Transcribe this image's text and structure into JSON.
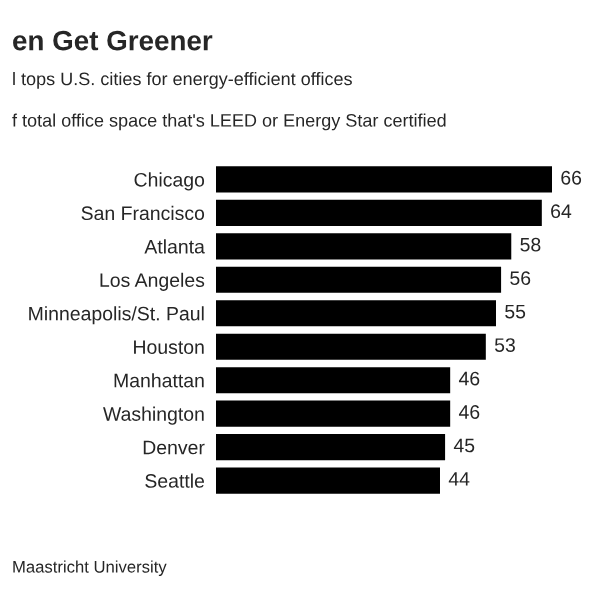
{
  "chart_data": {
    "type": "bar",
    "orientation": "horizontal",
    "title": "en Get Greener",
    "subtitle": "l tops U.S. cities for energy-efficient offices\n\nf total office space that's LEED or Energy Star certified",
    "categories": [
      "Chicago",
      "San Francisco",
      "Atlanta",
      "Los Angeles",
      "Minneapolis/St. Paul",
      "Houston",
      "Manhattan",
      "Washington",
      "Denver",
      "Seattle"
    ],
    "values": [
      66,
      64,
      58,
      56,
      55,
      53,
      46,
      46,
      45,
      44
    ],
    "color": "#000000",
    "data_labels": true,
    "grid": false,
    "annotations": [
      "Maastricht University"
    ]
  }
}
